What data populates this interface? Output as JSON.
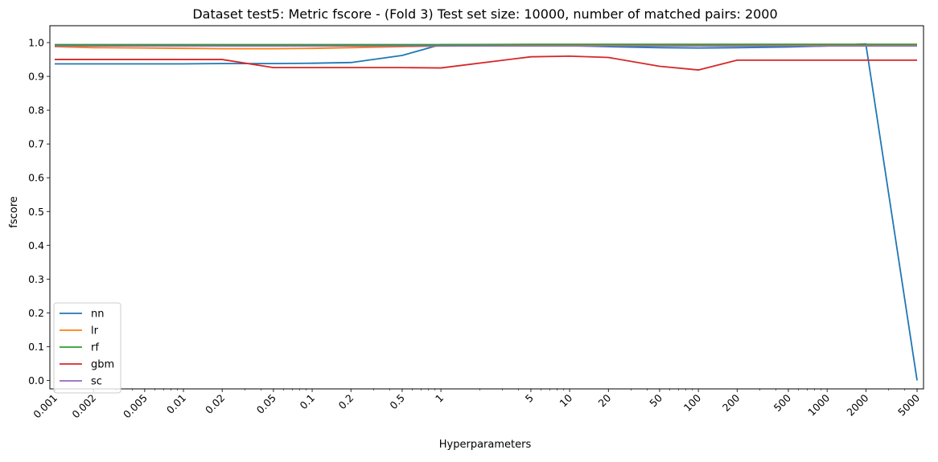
{
  "chart_data": {
    "type": "line",
    "title": "Dataset test5: Metric fscore - (Fold 3) Test set size: 10000, number of matched pairs: 2000",
    "xlabel": "Hyperparameters",
    "ylabel": "fscore",
    "x_scale": "log",
    "x": [
      0.001,
      0.002,
      0.005,
      0.01,
      0.02,
      0.05,
      0.1,
      0.2,
      0.5,
      1,
      5,
      10,
      20,
      50,
      100,
      200,
      500,
      1000,
      2000,
      5000
    ],
    "x_tick_labels": [
      "0.001",
      "0.002",
      "0.005",
      "0.01",
      "0.02",
      "0.05",
      "0.1",
      "0.2",
      "0.5",
      "1",
      "5",
      "10",
      "20",
      "50",
      "100",
      "200",
      "500",
      "1000",
      "2000",
      "5000"
    ],
    "y_ticks": [
      0.0,
      0.1,
      0.2,
      0.3,
      0.4,
      0.5,
      0.6,
      0.7,
      0.8,
      0.9,
      1.0
    ],
    "y_tick_labels": [
      "0.0",
      "0.1",
      "0.2",
      "0.3",
      "0.4",
      "0.5",
      "0.6",
      "0.7",
      "0.8",
      "0.9",
      "1.0"
    ],
    "ylim": [
      -0.025,
      1.05
    ],
    "grid": false,
    "legend_position": "lower-left",
    "series": [
      {
        "name": "nn",
        "color": "#1f77b4",
        "values": [
          0.937,
          0.937,
          0.937,
          0.937,
          0.938,
          0.938,
          0.939,
          0.941,
          0.962,
          0.994,
          0.993,
          0.991,
          0.988,
          0.985,
          0.984,
          0.985,
          0.987,
          0.99,
          0.996,
          0.0
        ]
      },
      {
        "name": "lr",
        "color": "#ff7f0e",
        "values": [
          0.988,
          0.985,
          0.984,
          0.983,
          0.982,
          0.982,
          0.983,
          0.985,
          0.988,
          0.99,
          0.991,
          0.991,
          0.991,
          0.991,
          0.991,
          0.991,
          0.991,
          0.991,
          0.991,
          0.991
        ]
      },
      {
        "name": "rf",
        "color": "#2ca02c",
        "values": [
          0.994,
          0.994,
          0.994,
          0.994,
          0.994,
          0.994,
          0.994,
          0.994,
          0.994,
          0.994,
          0.995,
          0.995,
          0.995,
          0.995,
          0.995,
          0.995,
          0.995,
          0.995,
          0.995,
          0.995
        ]
      },
      {
        "name": "gbm",
        "color": "#d62728",
        "values": [
          0.95,
          0.95,
          0.95,
          0.95,
          0.95,
          0.926,
          0.926,
          0.926,
          0.926,
          0.925,
          0.958,
          0.96,
          0.956,
          0.93,
          0.919,
          0.948,
          0.948,
          0.948,
          0.948,
          0.948
        ]
      },
      {
        "name": "sc",
        "color": "#9467bd",
        "values": [
          0.99,
          0.99,
          0.99,
          0.99,
          0.99,
          0.99,
          0.99,
          0.99,
          0.99,
          0.99,
          0.99,
          0.99,
          0.99,
          0.99,
          0.99,
          0.99,
          0.99,
          0.99,
          0.99,
          0.99
        ]
      }
    ]
  }
}
